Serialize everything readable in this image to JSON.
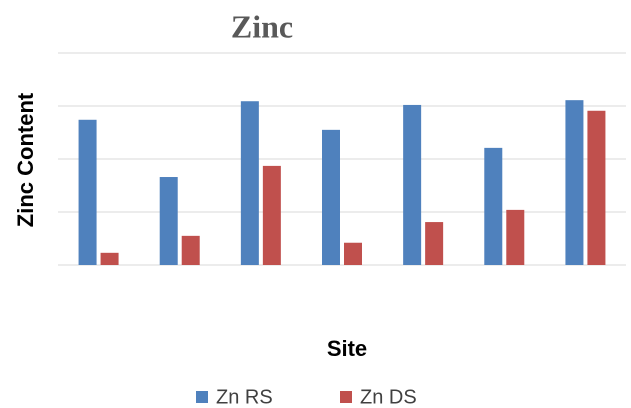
{
  "chart_data": {
    "type": "bar",
    "title": "Zinc",
    "x_label": "Site",
    "y_label": "Zinc Content",
    "categories": [
      null,
      null,
      null,
      null,
      null,
      null,
      null
    ],
    "series": [
      {
        "name": "Zn RS",
        "color": "#4f81bd",
        "values": [
          2.74,
          1.66,
          3.09,
          2.55,
          3.02,
          2.21,
          3.11
        ]
      },
      {
        "name": "Zn DS",
        "color": "#c0504d",
        "values": [
          0.23,
          0.55,
          1.87,
          0.42,
          0.81,
          1.04,
          2.91
        ]
      }
    ],
    "ylim": [
      0,
      4
    ],
    "yticks": [
      0,
      1,
      2,
      3,
      4
    ],
    "grid": true,
    "legend": "bottom"
  }
}
